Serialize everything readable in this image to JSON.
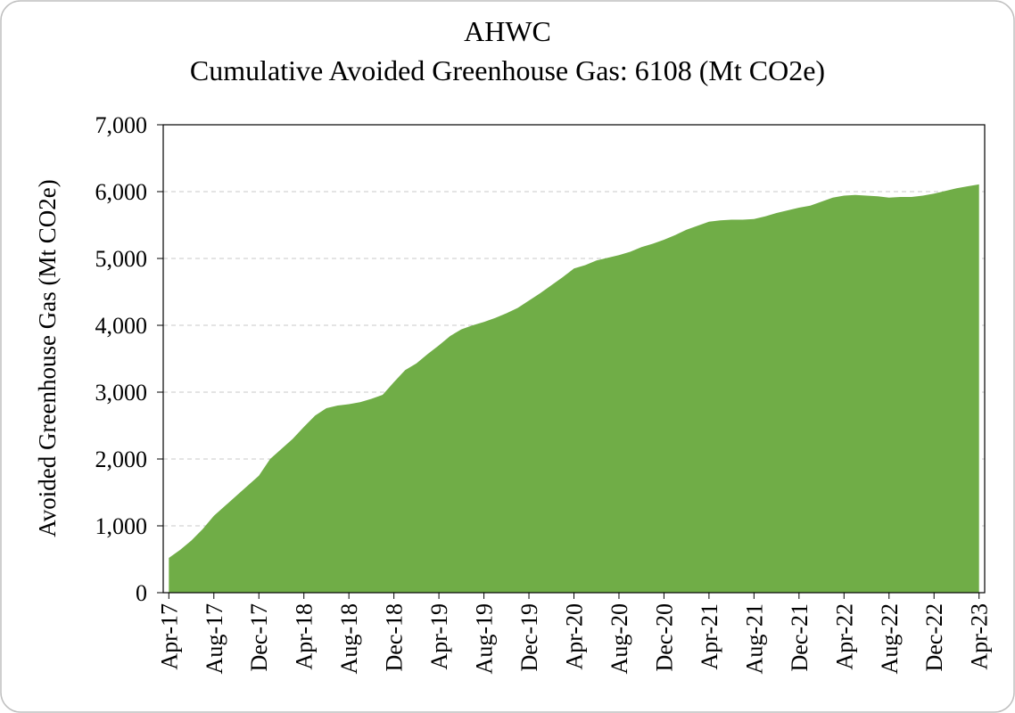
{
  "chart_data": {
    "type": "area",
    "title": "AHWC",
    "subtitle": "Cumulative Avoided Greenhouse Gas: 6108 (Mt CO2e)",
    "y_label": "Avoided Greenhouse Gas (Mt CO2e)",
    "color": "#70ad47",
    "grid": true,
    "categories": [
      "Apr-17",
      null,
      null,
      null,
      "Aug-17",
      null,
      null,
      null,
      "Dec-17",
      null,
      null,
      null,
      "Apr-18",
      null,
      null,
      null,
      "Aug-18",
      null,
      null,
      null,
      "Dec-18",
      null,
      null,
      null,
      "Apr-19",
      null,
      null,
      null,
      "Aug-19",
      null,
      null,
      null,
      "Dec-19",
      null,
      null,
      null,
      "Apr-20",
      null,
      null,
      null,
      "Aug-20",
      null,
      null,
      null,
      "Dec-20",
      null,
      null,
      null,
      "Apr-21",
      null,
      null,
      null,
      "Aug-21",
      null,
      null,
      null,
      "Dec-21",
      null,
      null,
      null,
      "Apr-22",
      null,
      null,
      null,
      "Aug-22",
      null,
      null,
      null,
      "Dec-22",
      null,
      null,
      null,
      "Apr-23"
    ],
    "values": [
      520,
      640,
      780,
      950,
      1150,
      1300,
      1450,
      1600,
      1750,
      2000,
      2150,
      2300,
      2480,
      2650,
      2760,
      2800,
      2820,
      2850,
      2900,
      2960,
      3150,
      3330,
      3430,
      3570,
      3700,
      3840,
      3940,
      4000,
      4050,
      4110,
      4180,
      4260,
      4370,
      4480,
      4600,
      4720,
      4850,
      4900,
      4970,
      5010,
      5050,
      5100,
      5170,
      5220,
      5280,
      5350,
      5430,
      5490,
      5550,
      5570,
      5580,
      5580,
      5590,
      5630,
      5680,
      5720,
      5760,
      5790,
      5850,
      5910,
      5940,
      5950,
      5940,
      5930,
      5910,
      5920,
      5920,
      5940,
      5970,
      6010,
      6050,
      6080,
      6108
    ],
    "ylim": [
      0,
      7000
    ],
    "yticks": [
      0,
      {
        "value": 1000,
        "label": "1,000"
      },
      {
        "value": 2000,
        "label": "2,000"
      },
      {
        "value": 3000,
        "label": "3,000"
      },
      {
        "value": 4000,
        "label": "4,000"
      },
      {
        "value": 5000,
        "label": "5,000"
      },
      {
        "value": 6000,
        "label": "6,000"
      },
      {
        "value": 7000,
        "label": "7,000"
      }
    ]
  }
}
